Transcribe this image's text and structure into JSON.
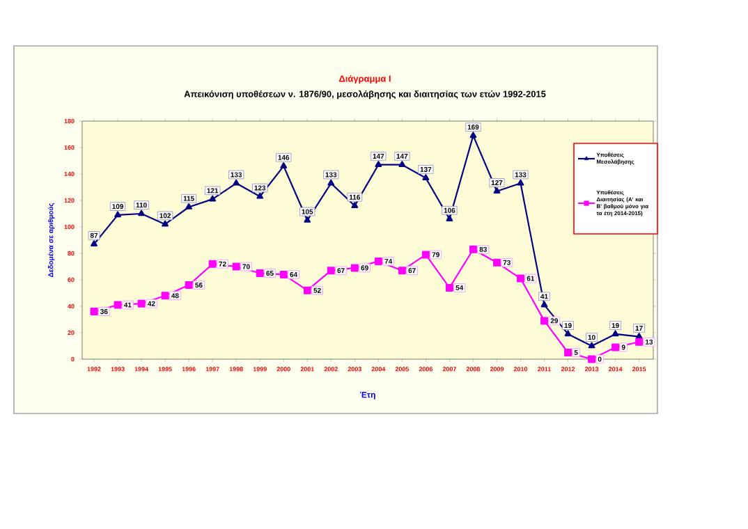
{
  "chart_data": {
    "type": "line",
    "title": "Διάγραμμα Ι",
    "subtitle": "Απεικόνιση υποθέσεων  ν. 1876/90, μεσολάβησης και διαιτησίας των ετών 1992-2015",
    "xlabel": "Έτη",
    "ylabel": "Δεδομένα σε αριθμούς",
    "categories": [
      "1992",
      "1993",
      "1994",
      "1995",
      "1996",
      "1997",
      "1998",
      "1999",
      "2000",
      "2001",
      "2002",
      "2003",
      "2004",
      "2005",
      "2006",
      "2007",
      "2008",
      "2009",
      "2010",
      "2011",
      "2012",
      "2013",
      "2014",
      "2015"
    ],
    "series": [
      {
        "name": "Υποθέσεις Μεσολάβησης",
        "color": "#000080",
        "marker": "triangle",
        "values": [
          87,
          109,
          110,
          102,
          115,
          121,
          133,
          123,
          146,
          105,
          133,
          116,
          147,
          147,
          137,
          106,
          169,
          127,
          133,
          41,
          19,
          10,
          19,
          17
        ]
      },
      {
        "name": "Υποθέσεις Διαιτησίας (Α' και Β' βαθμού μόνο για τα έτη 2014-2015)",
        "color": "#ff00ff",
        "marker": "square",
        "values": [
          36,
          41,
          42,
          48,
          56,
          72,
          70,
          65,
          64,
          52,
          67,
          69,
          74,
          67,
          79,
          54,
          83,
          73,
          61,
          29,
          5,
          0,
          9,
          13
        ]
      }
    ],
    "ylim": [
      0,
      180
    ],
    "yticks": [
      0,
      20,
      40,
      60,
      80,
      100,
      120,
      140,
      160,
      180
    ],
    "grid": false,
    "legend": "top right",
    "data_labels": true
  }
}
